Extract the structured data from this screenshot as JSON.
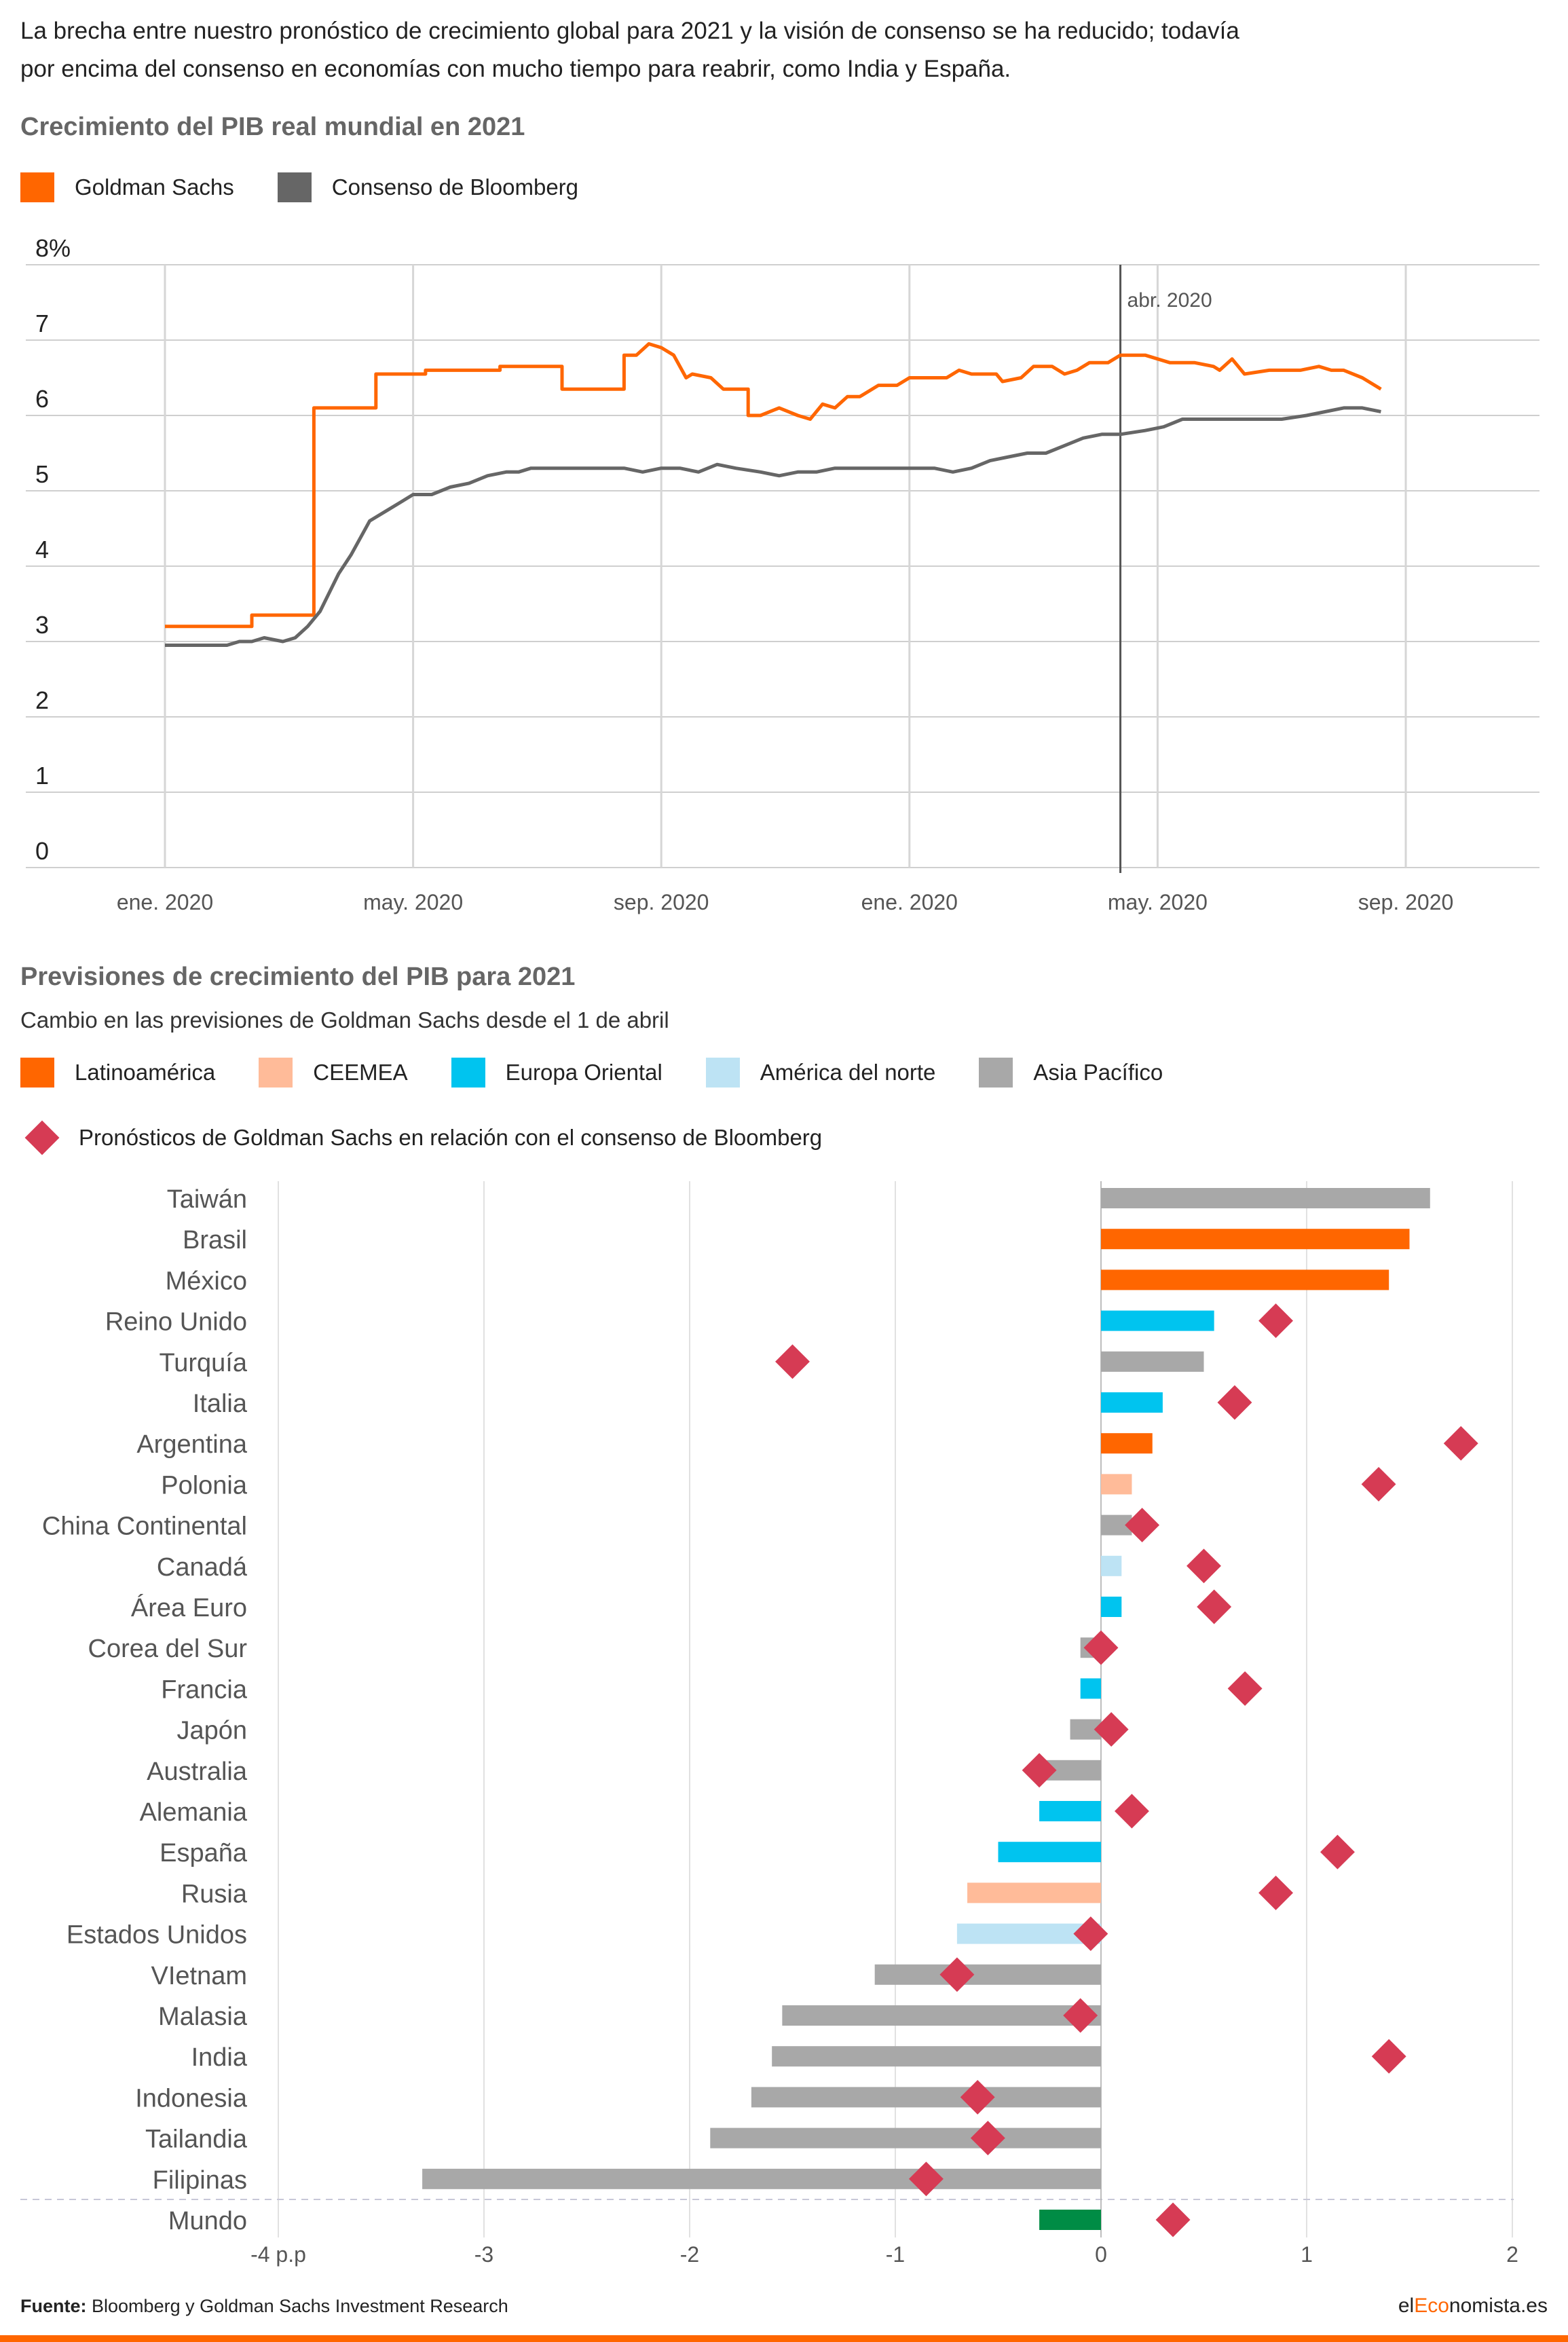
{
  "intro": {
    "line1": "La brecha entre nuestro pronóstico de crecimiento global para 2021 y la visión de consenso se ha reducido; todavía",
    "line2": "por encima del consenso en economías con mucho tiempo para reabrir, como India y España."
  },
  "colors": {
    "goldman": "#ff6600",
    "bloomberg": "#666666",
    "latam": "#ff6600",
    "ceemea": "#ffbb99",
    "europa_oriental": "#00c4ef",
    "america_norte": "#bde3f4",
    "asia_pacifico": "#a8a8a8",
    "mundo": "#008c45",
    "diamond": "#d63b54",
    "brand_accent": "#ff6600"
  },
  "chart1": {
    "title": "Crecimiento del PIB real mundial en 2021",
    "legend": [
      "Goldman Sachs",
      "Consenso de Bloomberg"
    ],
    "marker_label": "abr. 2020",
    "y_labels": [
      "8%",
      "7",
      "6",
      "5",
      "4",
      "3",
      "2",
      "1",
      "0"
    ],
    "x_labels": [
      "ene. 2020",
      "may. 2020",
      "sep. 2020",
      "ene. 2020",
      "may. 2020",
      "sep. 2020"
    ]
  },
  "chart2": {
    "title": "Previsiones de crecimiento del PIB para 2021",
    "subtitle": "Cambio en las previsiones de Goldman Sachs desde el 1 de abril",
    "legend_regions": [
      "Latinoamérica",
      "CEEMEA",
      "Europa Oriental",
      "América del norte",
      "Asia Pacífico"
    ],
    "legend_diamond": "Pronósticos de Goldman Sachs en relación con el consenso de Bloomberg",
    "x_labels": [
      "-4 p.p",
      "-3",
      "-2",
      "-1",
      "0",
      "1",
      "2"
    ]
  },
  "chart_data": [
    {
      "type": "line",
      "title": "Crecimiento del PIB real mundial en 2021",
      "ylabel": "%",
      "ylim": [
        0,
        8
      ],
      "x_tick_labels": [
        "ene. 2020",
        "may. 2020",
        "sep. 2020",
        "ene. 2020",
        "may. 2020",
        "sep. 2020"
      ],
      "x_range_months": [
        0,
        20
      ],
      "annotation": {
        "label": "abr. 2020",
        "x": 15.4
      },
      "grid": true,
      "legend_position": "top-left",
      "series": [
        {
          "name": "Goldman Sachs",
          "points": [
            [
              0.0,
              3.2
            ],
            [
              1.4,
              3.2
            ],
            [
              1.4,
              3.35
            ],
            [
              2.4,
              3.35
            ],
            [
              2.4,
              6.1
            ],
            [
              3.4,
              6.1
            ],
            [
              3.4,
              6.55
            ],
            [
              4.2,
              6.55
            ],
            [
              4.2,
              6.6
            ],
            [
              5.4,
              6.6
            ],
            [
              5.4,
              6.65
            ],
            [
              6.4,
              6.65
            ],
            [
              6.4,
              6.35
            ],
            [
              7.4,
              6.35
            ],
            [
              7.4,
              6.8
            ],
            [
              7.6,
              6.8
            ],
            [
              7.8,
              6.95
            ],
            [
              8.0,
              6.9
            ],
            [
              8.2,
              6.8
            ],
            [
              8.4,
              6.5
            ],
            [
              8.5,
              6.55
            ],
            [
              8.8,
              6.5
            ],
            [
              9.0,
              6.35
            ],
            [
              9.4,
              6.35
            ],
            [
              9.4,
              6.0
            ],
            [
              9.6,
              6.0
            ],
            [
              9.9,
              6.1
            ],
            [
              10.2,
              6.0
            ],
            [
              10.4,
              5.95
            ],
            [
              10.6,
              6.15
            ],
            [
              10.8,
              6.1
            ],
            [
              11.0,
              6.25
            ],
            [
              11.2,
              6.25
            ],
            [
              11.5,
              6.4
            ],
            [
              11.8,
              6.4
            ],
            [
              12.0,
              6.5
            ],
            [
              12.3,
              6.5
            ],
            [
              12.6,
              6.5
            ],
            [
              12.8,
              6.6
            ],
            [
              13.0,
              6.55
            ],
            [
              13.4,
              6.55
            ],
            [
              13.5,
              6.45
            ],
            [
              13.8,
              6.5
            ],
            [
              14.0,
              6.65
            ],
            [
              14.3,
              6.65
            ],
            [
              14.5,
              6.55
            ],
            [
              14.7,
              6.6
            ],
            [
              14.9,
              6.7
            ],
            [
              15.2,
              6.7
            ],
            [
              15.4,
              6.8
            ],
            [
              15.8,
              6.8
            ],
            [
              16.2,
              6.7
            ],
            [
              16.6,
              6.7
            ],
            [
              16.9,
              6.65
            ],
            [
              17.0,
              6.6
            ],
            [
              17.2,
              6.75
            ],
            [
              17.4,
              6.55
            ],
            [
              17.8,
              6.6
            ],
            [
              18.3,
              6.6
            ],
            [
              18.6,
              6.65
            ],
            [
              18.8,
              6.6
            ],
            [
              19.0,
              6.6
            ],
            [
              19.3,
              6.5
            ],
            [
              19.6,
              6.35
            ]
          ]
        },
        {
          "name": "Consenso de Bloomberg",
          "points": [
            [
              0.0,
              2.95
            ],
            [
              1.0,
              2.95
            ],
            [
              1.2,
              3.0
            ],
            [
              1.4,
              3.0
            ],
            [
              1.6,
              3.05
            ],
            [
              1.9,
              3.0
            ],
            [
              2.1,
              3.05
            ],
            [
              2.3,
              3.2
            ],
            [
              2.5,
              3.4
            ],
            [
              2.8,
              3.9
            ],
            [
              3.0,
              4.15
            ],
            [
              3.3,
              4.6
            ],
            [
              3.6,
              4.75
            ],
            [
              3.8,
              4.85
            ],
            [
              4.0,
              4.95
            ],
            [
              4.3,
              4.95
            ],
            [
              4.6,
              5.05
            ],
            [
              4.9,
              5.1
            ],
            [
              5.2,
              5.2
            ],
            [
              5.5,
              5.25
            ],
            [
              5.7,
              5.25
            ],
            [
              5.9,
              5.3
            ],
            [
              6.3,
              5.3
            ],
            [
              6.6,
              5.3
            ],
            [
              7.0,
              5.3
            ],
            [
              7.4,
              5.3
            ],
            [
              7.7,
              5.25
            ],
            [
              8.0,
              5.3
            ],
            [
              8.3,
              5.3
            ],
            [
              8.6,
              5.25
            ],
            [
              8.9,
              5.35
            ],
            [
              9.2,
              5.3
            ],
            [
              9.6,
              5.25
            ],
            [
              9.9,
              5.2
            ],
            [
              10.2,
              5.25
            ],
            [
              10.5,
              5.25
            ],
            [
              10.8,
              5.3
            ],
            [
              11.2,
              5.3
            ],
            [
              11.6,
              5.3
            ],
            [
              12.0,
              5.3
            ],
            [
              12.4,
              5.3
            ],
            [
              12.7,
              5.25
            ],
            [
              13.0,
              5.3
            ],
            [
              13.3,
              5.4
            ],
            [
              13.6,
              5.45
            ],
            [
              13.9,
              5.5
            ],
            [
              14.2,
              5.5
            ],
            [
              14.5,
              5.6
            ],
            [
              14.8,
              5.7
            ],
            [
              15.1,
              5.75
            ],
            [
              15.4,
              5.75
            ],
            [
              15.8,
              5.8
            ],
            [
              16.1,
              5.85
            ],
            [
              16.4,
              5.95
            ],
            [
              16.8,
              5.95
            ],
            [
              17.2,
              5.95
            ],
            [
              17.6,
              5.95
            ],
            [
              18.0,
              5.95
            ],
            [
              18.4,
              6.0
            ],
            [
              18.7,
              6.05
            ],
            [
              19.0,
              6.1
            ],
            [
              19.3,
              6.1
            ],
            [
              19.6,
              6.05
            ]
          ]
        }
      ]
    },
    {
      "type": "bar",
      "orientation": "horizontal",
      "title": "Previsiones de crecimiento del PIB para 2021",
      "subtitle": "Cambio en las previsiones de Goldman Sachs desde el 1 de abril",
      "xlim": [
        -4,
        2
      ],
      "grid": true,
      "legend_position": "top-left",
      "categories": [
        "Taiwán",
        "Brasil",
        "México",
        "Reino Unido",
        "Turquía",
        "Italia",
        "Argentina",
        "Polonia",
        "China Continental",
        "Canadá",
        "Área Euro",
        "Corea del Sur",
        "Francia",
        "Japón",
        "Australia",
        "Alemania",
        "España",
        "Rusia",
        "Estados Unidos",
        "VIetnam",
        "Malasia",
        "India",
        "Indonesia",
        "Tailandia",
        "Filipinas",
        "Mundo"
      ],
      "regions": [
        "asia_pacifico",
        "latam",
        "latam",
        "europa_oriental",
        "asia_pacifico",
        "europa_oriental",
        "latam",
        "ceemea",
        "asia_pacifico",
        "america_norte",
        "europa_oriental",
        "asia_pacifico",
        "europa_oriental",
        "asia_pacifico",
        "asia_pacifico",
        "europa_oriental",
        "europa_oriental",
        "ceemea",
        "america_norte",
        "asia_pacifico",
        "asia_pacifico",
        "asia_pacifico",
        "asia_pacifico",
        "asia_pacifico",
        "asia_pacifico",
        "mundo"
      ],
      "series": [
        {
          "name": "Cambio en las previsiones de Goldman Sachs desde el 1 de abril",
          "values": [
            1.6,
            1.5,
            1.4,
            0.55,
            0.5,
            0.3,
            0.25,
            0.15,
            0.15,
            0.1,
            0.1,
            -0.1,
            -0.1,
            -0.15,
            -0.3,
            -0.3,
            -0.5,
            -0.65,
            -0.7,
            -1.1,
            -1.55,
            -1.6,
            -1.7,
            -1.9,
            -3.3,
            -0.3
          ]
        },
        {
          "name": "Pronósticos de Goldman Sachs en relación con el consenso de Bloomberg",
          "values": [
            null,
            null,
            null,
            0.85,
            -1.5,
            0.65,
            1.75,
            1.35,
            0.2,
            0.5,
            0.55,
            0.0,
            0.7,
            0.05,
            -0.3,
            0.15,
            1.15,
            0.85,
            -0.05,
            -0.7,
            -0.1,
            1.4,
            -0.6,
            -0.55,
            -0.85,
            0.35
          ]
        }
      ]
    }
  ],
  "footer": {
    "source_label": "Fuente:",
    "source_text": "Bloomberg y Goldman Sachs Investment Research",
    "brand_pre": "el",
    "brand_mid": "Eco",
    "brand_post": "nomista.es"
  }
}
